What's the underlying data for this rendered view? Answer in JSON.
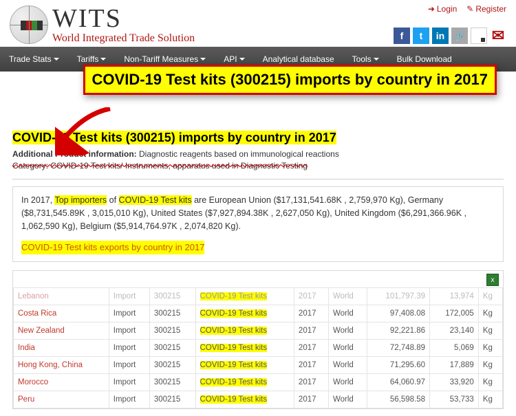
{
  "topLinks": {
    "login": "Login",
    "register": "Register"
  },
  "logo": {
    "big": "WITS",
    "sub": "World Integrated Trade Solution"
  },
  "nav": {
    "tradeStats": "Trade Stats",
    "tariffs": "Tariffs",
    "nonTariff": "Non-Tariff Measures",
    "api": "API",
    "analytical": "Analytical database",
    "tools": "Tools",
    "bulk": "Bulk Download"
  },
  "callout": "COVID-19 Test kits (300215) imports by country in 2017",
  "pageTitle": "COVID-19 Test kits (300215) imports by country in 2017",
  "addlLabel": "Additional Product information:",
  "addlText": " Diagnostic reagents based on immunological reactions",
  "categoryLine": "Category: COVID-19 Test kits/ Instruments, apparatus used in Diagnostic Testing",
  "info": {
    "pre": "In 2017, ",
    "hl1": "Top importers",
    "mid1": " of ",
    "hl2": "COVID-19 Test kits",
    "post": " are European Union ($17,131,541.68K , 2,759,970 Kg), Germany ($8,731,545.89K , 3,015,010 Kg), United States ($7,927,894.38K , 2,627,050 Kg), United Kingdom ($6,291,366.96K , 1,062,590 Kg), Belgium ($5,914,764.97K , 2,074,820 Kg)."
  },
  "exportsLink": "COVID-19 Test kits exports by country in 2017",
  "kitLabel": "COVID-19 Test kits",
  "rows": [
    {
      "country": "Lebanon",
      "flow": "Import",
      "code": "300215",
      "year": "2017",
      "partner": "World",
      "val": "101,797.39",
      "qty": "13,974",
      "unit": "Kg",
      "faded": true
    },
    {
      "country": "Costa Rica",
      "flow": "Import",
      "code": "300215",
      "year": "2017",
      "partner": "World",
      "val": "97,408.08",
      "qty": "172,005",
      "unit": "Kg",
      "faded": false
    },
    {
      "country": "New Zealand",
      "flow": "Import",
      "code": "300215",
      "year": "2017",
      "partner": "World",
      "val": "92,221.86",
      "qty": "23,140",
      "unit": "Kg",
      "faded": false
    },
    {
      "country": "India",
      "flow": "Import",
      "code": "300215",
      "year": "2017",
      "partner": "World",
      "val": "72,748.89",
      "qty": "5,069",
      "unit": "Kg",
      "faded": false
    },
    {
      "country": "Hong Kong, China",
      "flow": "Import",
      "code": "300215",
      "year": "2017",
      "partner": "World",
      "val": "71,295.60",
      "qty": "17,889",
      "unit": "Kg",
      "faded": false
    },
    {
      "country": "Morocco",
      "flow": "Import",
      "code": "300215",
      "year": "2017",
      "partner": "World",
      "val": "64,060.97",
      "qty": "33,920",
      "unit": "Kg",
      "faded": false
    },
    {
      "country": "Peru",
      "flow": "Import",
      "code": "300215",
      "year": "2017",
      "partner": "World",
      "val": "56,598.58",
      "qty": "53,733",
      "unit": "Kg",
      "faded": false
    }
  ]
}
